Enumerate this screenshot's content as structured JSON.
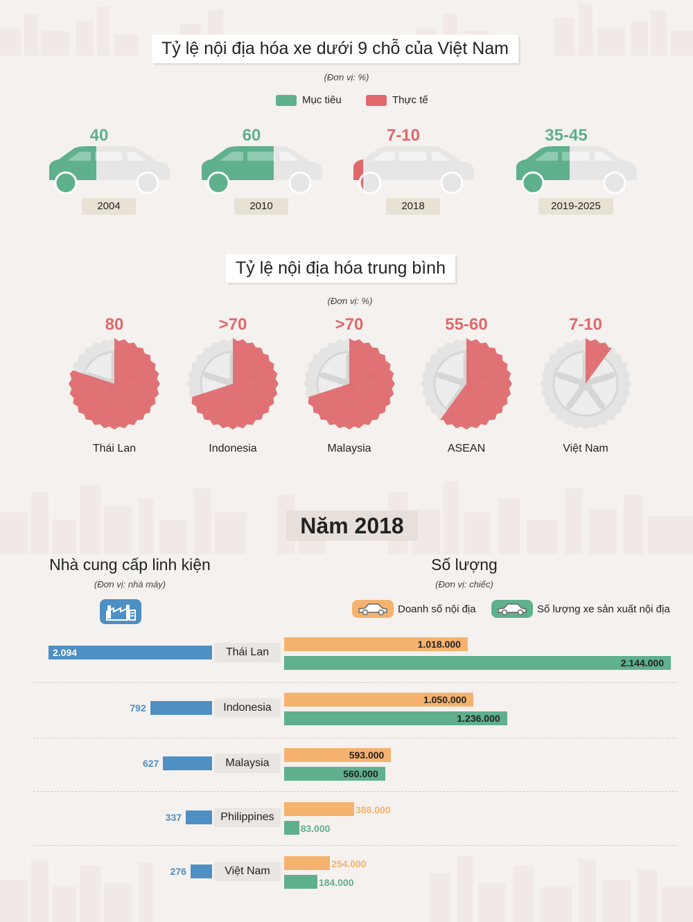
{
  "section1": {
    "title": "Tỷ lệ nội địa hóa xe dưới 9 chỗ của Việt Nam",
    "unit": "(Đơn vị: %)",
    "legend": [
      {
        "label": "Mục tiêu",
        "color": "#5fb08c"
      },
      {
        "label": "Thực tế",
        "color": "#e0686b"
      }
    ]
  },
  "section2": {
    "title": "Tỷ lệ nội địa hóa trung bình",
    "unit": "(Đơn vị: %)"
  },
  "section3": {
    "title": "Năm 2018",
    "left_title": "Nhà cung cấp linh kiện",
    "left_unit": "(Đơn vị: nhà máy)",
    "right_title": "Số lượng",
    "right_unit": "(Đơn vị: chiếc)",
    "legend": [
      {
        "label": "Doanh số nội địa",
        "color": "#f5b26e",
        "icon": "car-icon"
      },
      {
        "label": "Số lượng xe sản xuất nội địa",
        "color": "#5fb08c",
        "icon": "car-icon"
      }
    ]
  },
  "chart_data": [
    {
      "type": "bar",
      "title": "Tỷ lệ nội địa hóa xe dưới 9 chỗ của Việt Nam",
      "categories": [
        "2004",
        "2010",
        "2018",
        "2019-2025"
      ],
      "labels": [
        "40",
        "60",
        "7-10",
        "35-45"
      ],
      "values": [
        40,
        60,
        10,
        45
      ],
      "kinds": [
        "Mục tiêu",
        "Mục tiêu",
        "Thực tế",
        "Mục tiêu"
      ],
      "colors": [
        "#5fb08c",
        "#5fb08c",
        "#e0686b",
        "#5fb08c"
      ]
    },
    {
      "type": "pie",
      "title": "Tỷ lệ nội địa hóa trung bình",
      "categories": [
        "Thái Lan",
        "Indonesia",
        "Malaysia",
        "ASEAN",
        "Việt Nam"
      ],
      "labels": [
        "80",
        ">70",
        ">70",
        "55-60",
        "7-10"
      ],
      "values": [
        80,
        70,
        70,
        60,
        10
      ]
    },
    {
      "type": "bar",
      "title": "Nhà cung cấp linh kiện",
      "categories": [
        "Thái Lan",
        "Indonesia",
        "Malaysia",
        "Philippines",
        "Việt Nam"
      ],
      "values": [
        2094,
        792,
        627,
        337,
        276
      ],
      "value_labels": [
        "2.094",
        "792",
        "627",
        "337",
        "276"
      ],
      "color": "#4e8fc4"
    },
    {
      "type": "bar",
      "title": "Số lượng",
      "categories": [
        "Thái Lan",
        "Indonesia",
        "Malaysia",
        "Philippines",
        "Việt Nam"
      ],
      "series": [
        {
          "name": "Doanh số nội địa",
          "values": [
            1018000,
            1050000,
            593000,
            388000,
            254000
          ],
          "value_labels": [
            "1.018.000",
            "1.050.000",
            "593.000",
            "388.000",
            "254.000"
          ],
          "color": "#f5b26e"
        },
        {
          "name": "Số lượng xe sản xuất nội địa",
          "values": [
            2144000,
            1236000,
            560000,
            83000,
            184000
          ],
          "value_labels": [
            "2.144.000",
            "1.236.000",
            "560.000",
            "83.000",
            "184.000"
          ],
          "color": "#5fb08c"
        }
      ]
    }
  ]
}
